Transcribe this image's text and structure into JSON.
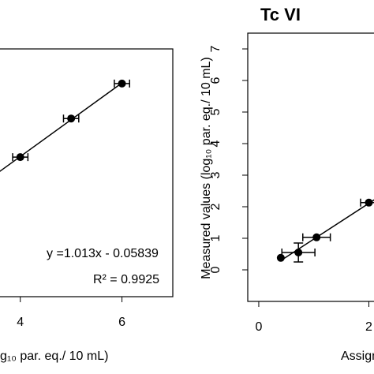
{
  "chart_data": [
    {
      "type": "scatter",
      "x_label": "g₁₀ par. eq./ 10 mL)",
      "annotations": [
        "y =1.013x - 0.05839",
        "R² = 0.9925"
      ],
      "series": [
        {
          "color": "#000000",
          "x": [
            4,
            5,
            6
          ],
          "values": [
            4.03,
            5.09,
            6.05
          ],
          "xerr": [
            0.15,
            0.15,
            0.15
          ],
          "yerr": [
            null,
            null,
            null
          ]
        }
      ],
      "xlim": [
        0,
        7
      ],
      "ylim": [
        0.2,
        7
      ],
      "xticks": [
        4,
        6
      ],
      "yticks": []
    },
    {
      "type": "scatter",
      "title": "Tc VI",
      "x_label": "Assigned",
      "y_label": "Measured values (log₁₀ par. eq./ 10 mL)",
      "series": [
        {
          "color": "#000000",
          "x": [
            0.4,
            0.72,
            1.05,
            2.0
          ],
          "values": [
            0.38,
            0.55,
            1.03,
            2.13
          ],
          "xerr": [
            null,
            0.3,
            0.25,
            0.15
          ],
          "yerr": [
            null,
            0.3,
            null,
            null
          ]
        }
      ],
      "xlim": [
        -0.2,
        4.1
      ],
      "ylim": [
        -1,
        7.5
      ],
      "xticks": [
        0,
        2
      ],
      "yticks": [
        0,
        1,
        2,
        3,
        4,
        5,
        6,
        7
      ]
    }
  ]
}
